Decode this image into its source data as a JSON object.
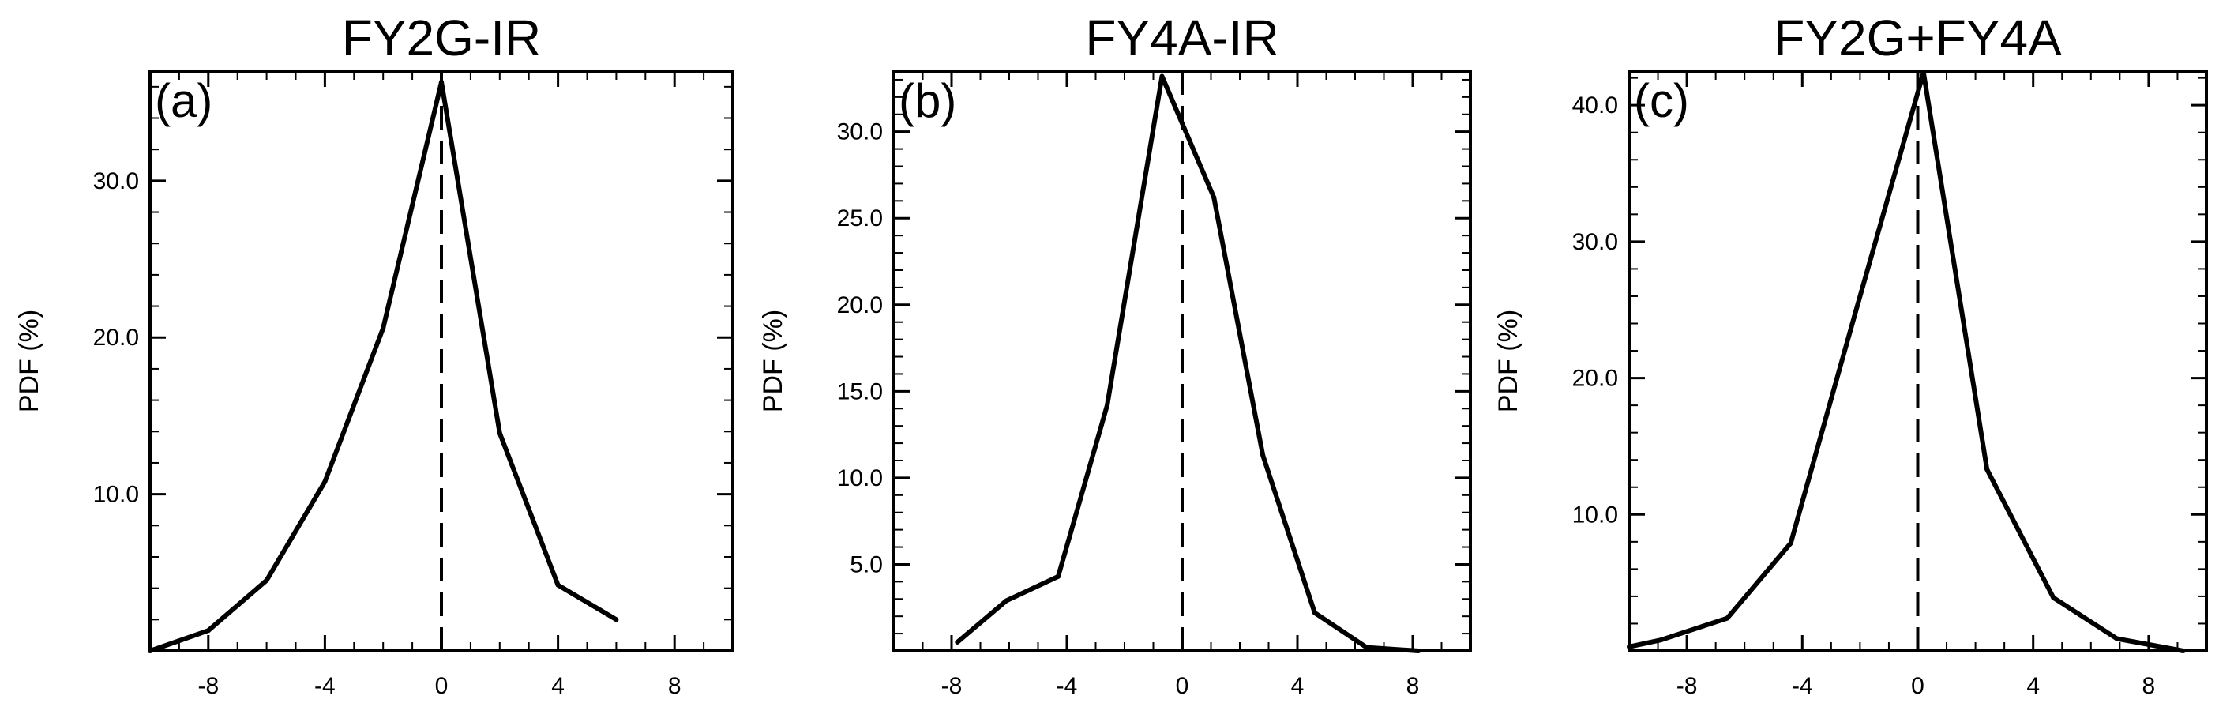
{
  "chart_data": [
    {
      "type": "line",
      "title": "FY2G-IR",
      "panel_label": "(a)",
      "ylabel": "PDF (%)",
      "xlabel": "",
      "xlim": [
        -10,
        10
      ],
      "ylim": [
        0,
        37
      ],
      "xticks": [
        -8,
        -4,
        0,
        4,
        8
      ],
      "xtick_labels": [
        "-8",
        "-4",
        "0",
        "4",
        "8"
      ],
      "yticks": [
        10,
        20,
        30
      ],
      "ytick_labels": [
        "10.0",
        "20.0",
        "30.0"
      ],
      "x_minor_step": 1,
      "y_minor_step": 2,
      "reference_line": {
        "x": 0,
        "style": "dashed"
      },
      "grid": false,
      "series": [
        {
          "x": [
            -10,
            -8,
            -6,
            -4,
            -2,
            0,
            2,
            4,
            6
          ],
          "y": [
            0.0,
            1.3,
            4.5,
            10.8,
            20.6,
            36.3,
            13.9,
            4.2,
            2.0
          ]
        }
      ]
    },
    {
      "type": "line",
      "title": "FY4A-IR",
      "panel_label": "(b)",
      "ylabel": "PDF (%)",
      "xlabel": "",
      "xlim": [
        -10,
        10
      ],
      "ylim": [
        0,
        33.5
      ],
      "xticks": [
        -8,
        -4,
        0,
        4,
        8
      ],
      "xtick_labels": [
        "-8",
        "-4",
        "0",
        "4",
        "8"
      ],
      "yticks": [
        5,
        10,
        15,
        20,
        25,
        30
      ],
      "ytick_labels": [
        "5.0",
        "10.0",
        "15.0",
        "20.0",
        "25.0",
        "30.0"
      ],
      "x_minor_step": 1,
      "y_minor_step": 1,
      "reference_line": {
        "x": 0,
        "style": "dashed"
      },
      "grid": false,
      "series": [
        {
          "x": [
            -7.8,
            -6.1,
            -4.3,
            -2.6,
            -0.7,
            1.1,
            2.8,
            4.6,
            6.4,
            8.2
          ],
          "y": [
            0.5,
            2.9,
            4.3,
            14.2,
            33.2,
            26.2,
            11.3,
            2.2,
            0.2,
            0.0
          ]
        }
      ]
    },
    {
      "type": "line",
      "title": "FY2G+FY4A",
      "panel_label": "(c)",
      "ylabel": "PDF (%)",
      "xlabel": "",
      "xlim": [
        -10,
        10
      ],
      "ylim": [
        0,
        42.5
      ],
      "xticks": [
        -8,
        -4,
        0,
        4,
        8
      ],
      "xtick_labels": [
        "-8",
        "-4",
        "0",
        "4",
        "8"
      ],
      "yticks": [
        10,
        20,
        30,
        40
      ],
      "ytick_labels": [
        "10.0",
        "20.0",
        "30.0",
        "40.0"
      ],
      "x_minor_step": 1,
      "y_minor_step": 2,
      "reference_line": {
        "x": 0,
        "style": "dashed"
      },
      "grid": false,
      "series": [
        {
          "x": [
            -10,
            -8.9,
            -6.6,
            -4.4,
            -2.2,
            0.2,
            2.4,
            4.7,
            6.9,
            9.2
          ],
          "y": [
            0.3,
            0.8,
            2.4,
            7.9,
            24.5,
            42.4,
            13.3,
            3.9,
            0.9,
            0.0
          ]
        }
      ]
    }
  ]
}
